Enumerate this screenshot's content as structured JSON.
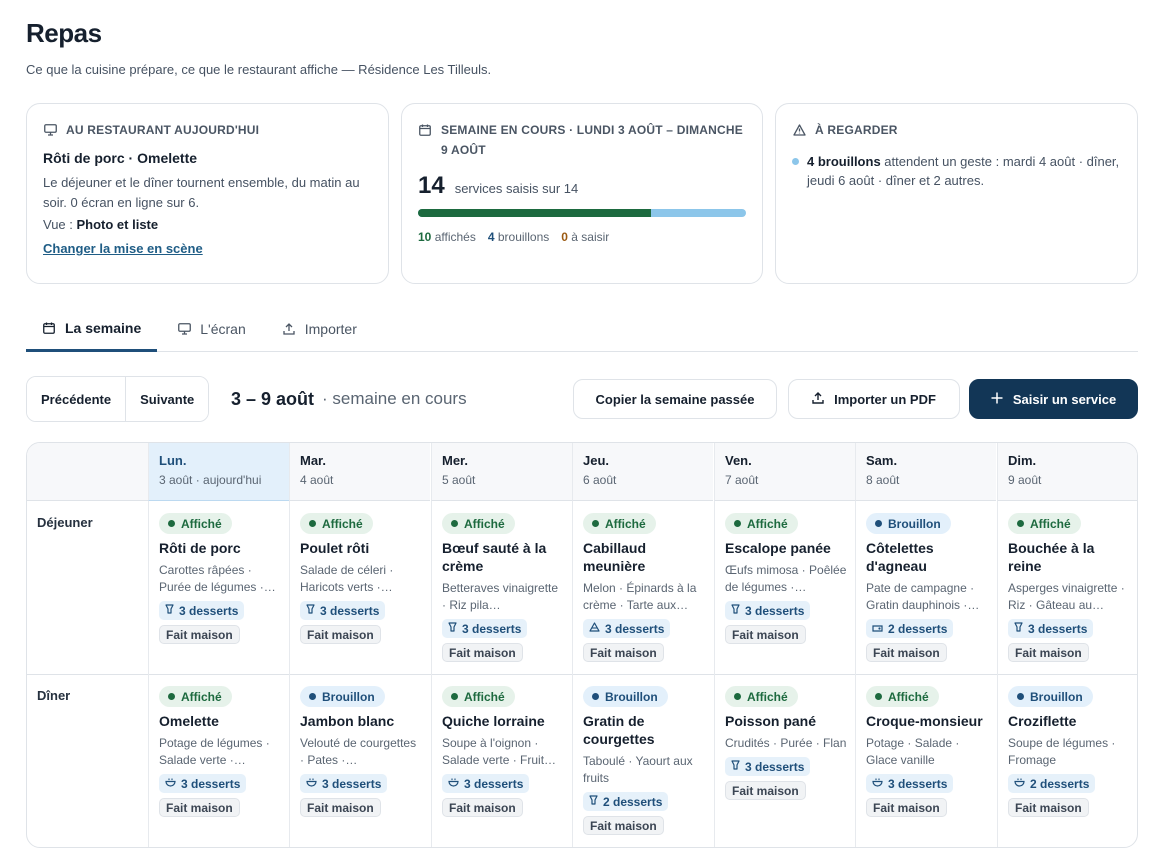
{
  "header": {
    "title": "Repas",
    "subtitle": "Ce que la cuisine prépare, ce que le restaurant affiche — Résidence Les Tilleuls."
  },
  "today_card": {
    "label": "AU RESTAURANT AUJOURD'HUI",
    "dish": "Rôti de porc · Omelette",
    "description": "Le déjeuner et le dîner tournent ensemble, du matin au soir. 0 écran en ligne sur 6.",
    "view_prefix": "Vue : ",
    "view_value": "Photo et liste",
    "link": "Changer la mise en scène"
  },
  "week_card": {
    "label": "SEMAINE EN COURS · LUNDI 3 AOÛT – DIMANCHE 9 AOÛT",
    "count": "14",
    "count_label": "services saisis sur 14",
    "progress_published": 0.71,
    "published_num": "10",
    "published_label": "affichés",
    "drafts_num": "4",
    "drafts_label": "brouillons",
    "todo_num": "0",
    "todo_label": "à saisir"
  },
  "watch_card": {
    "label": "À REGARDER",
    "bold": "4 brouillons",
    "text": " attendent un geste : mardi 4 août · dîner, jeudi 6 août · dîner et 2 autres."
  },
  "tabs": [
    {
      "label": "La semaine",
      "icon": "calendar-icon"
    },
    {
      "label": "L'écran",
      "icon": "monitor-icon"
    },
    {
      "label": "Importer",
      "icon": "upload-icon"
    }
  ],
  "toolbar": {
    "prev": "Précédente",
    "next": "Suivante",
    "range": "3 – 9 août",
    "range_note": "· semaine en cours",
    "copy": "Copier la semaine passée",
    "import_pdf": "Importer un PDF",
    "new_service": "Saisir un service"
  },
  "colors": {
    "published": "#1d6a3f",
    "draft": "#8cc6ea",
    "primary": "#123656"
  },
  "days": [
    {
      "day": "Lun.",
      "date": "3 août · aujourd'hui",
      "today": true
    },
    {
      "day": "Mar.",
      "date": "4 août"
    },
    {
      "day": "Mer.",
      "date": "5 août"
    },
    {
      "day": "Jeu.",
      "date": "6 août"
    },
    {
      "day": "Ven.",
      "date": "7 août"
    },
    {
      "day": "Sam.",
      "date": "8 août"
    },
    {
      "day": "Dim.",
      "date": "9 août"
    }
  ],
  "meals": [
    {
      "label": "Déjeuner",
      "services": [
        {
          "status": "Affiché",
          "name": "Rôti de porc",
          "sides": "Carottes râpées · Purée de légumes ·…",
          "desserts": "3 desserts",
          "dessert_icon": "cup-icon",
          "homemade": "Fait maison"
        },
        {
          "status": "Affiché",
          "name": "Poulet rôti",
          "sides": "Salade de céleri · Haricots verts ·…",
          "desserts": "3 desserts",
          "dessert_icon": "cup-icon",
          "homemade": "Fait maison"
        },
        {
          "status": "Affiché",
          "name": "Bœuf sauté à la crème",
          "sides": "Betteraves vinaigrette · Riz pila…",
          "desserts": "3 desserts",
          "dessert_icon": "cup-icon",
          "homemade": "Fait maison"
        },
        {
          "status": "Affiché",
          "name": "Cabillaud meunière",
          "sides": "Melon · Épinards à la crème · Tarte aux…",
          "desserts": "3 desserts",
          "dessert_icon": "cake-icon",
          "homemade": "Fait maison"
        },
        {
          "status": "Affiché",
          "name": "Escalope panée",
          "sides": "Œufs mimosa · Poêlée de légumes ·…",
          "desserts": "3 desserts",
          "dessert_icon": "cup-icon",
          "homemade": "Fait maison"
        },
        {
          "status": "Brouillon",
          "name": "Côtelettes d'agneau",
          "sides": "Pate de campagne · Gratin dauphinois ·…",
          "desserts": "2 desserts",
          "dessert_icon": "cheese-icon",
          "homemade": "Fait maison"
        },
        {
          "status": "Affiché",
          "name": "Bouchée à la reine",
          "sides": "Asperges vinaigrette · Riz · Gâteau au…",
          "desserts": "3 desserts",
          "dessert_icon": "cup-icon",
          "homemade": "Fait maison"
        }
      ]
    },
    {
      "label": "Dîner",
      "services": [
        {
          "status": "Affiché",
          "name": "Omelette",
          "sides": "Potage de légumes · Salade verte ·…",
          "desserts": "3 desserts",
          "dessert_icon": "bowl-icon",
          "homemade": "Fait maison"
        },
        {
          "status": "Brouillon",
          "name": "Jambon blanc",
          "sides": "Velouté de courgettes · Pates ·…",
          "desserts": "3 desserts",
          "dessert_icon": "bowl-icon",
          "homemade": "Fait maison"
        },
        {
          "status": "Affiché",
          "name": "Quiche lorraine",
          "sides": "Soupe à l'oignon · Salade verte · Fruit…",
          "desserts": "3 desserts",
          "dessert_icon": "bowl-icon",
          "homemade": "Fait maison"
        },
        {
          "status": "Brouillon",
          "name": "Gratin de courgettes",
          "sides": "Taboulé · Yaourt aux fruits",
          "desserts": "2 desserts",
          "dessert_icon": "cup-icon",
          "homemade": "Fait maison"
        },
        {
          "status": "Affiché",
          "name": "Poisson pané",
          "sides": "Crudités · Purée · Flan",
          "desserts": "3 desserts",
          "dessert_icon": "cup-icon",
          "homemade": "Fait maison"
        },
        {
          "status": "Affiché",
          "name": "Croque-monsieur",
          "sides": "Potage · Salade · Glace vanille",
          "desserts": "3 desserts",
          "dessert_icon": "bowl-icon",
          "homemade": "Fait maison"
        },
        {
          "status": "Brouillon",
          "name": "Croziflette",
          "sides": "Soupe de légumes · Fromage",
          "desserts": "2 desserts",
          "dessert_icon": "bowl-icon",
          "homemade": "Fait maison"
        }
      ]
    }
  ]
}
